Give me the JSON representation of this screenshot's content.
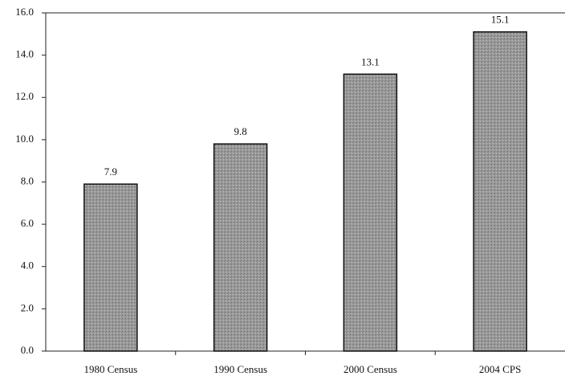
{
  "chart_data": {
    "type": "bar",
    "categories": [
      "1980 Census",
      "1990 Census",
      "2000 Census",
      "2004 CPS"
    ],
    "values": [
      7.9,
      9.8,
      13.1,
      15.1
    ],
    "color": "#9a9a9a",
    "ylim": [
      0,
      16
    ],
    "yticks": [
      {
        "value": 0,
        "label": "0.0"
      },
      {
        "value": 2,
        "label": "2.0"
      },
      {
        "value": 4,
        "label": "4.0"
      },
      {
        "value": 6,
        "label": "6.0"
      },
      {
        "value": 8,
        "label": "8.0"
      },
      {
        "value": 10,
        "label": "10.0"
      },
      {
        "value": 12,
        "label": "12.0"
      },
      {
        "value": 14,
        "label": "14.0"
      },
      {
        "value": 16,
        "label": "16.0"
      }
    ],
    "grid": false
  }
}
